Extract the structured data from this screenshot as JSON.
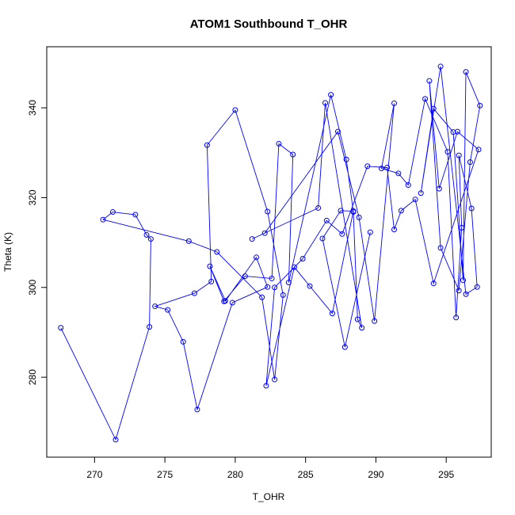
{
  "chart_data": {
    "type": "line",
    "title": "ATOM1 Southbound T_OHR",
    "xlabel": "T_OHR",
    "ylabel": "Theta (K)",
    "xlim": [
      266.6,
      298.2
    ],
    "ylim": [
      262.2,
      353.6
    ],
    "xticks": [
      270,
      275,
      280,
      285,
      290,
      295
    ],
    "yticks": [
      280,
      300,
      320,
      340
    ],
    "grid": false,
    "markers": "open-circle",
    "series": [
      {
        "color": "#0000ff",
        "x": [
          267.6,
          271.5,
          273.9,
          274.0,
          273.7,
          272.9,
          271.3,
          270.6,
          276.7,
          278.7,
          281.9,
          282.8,
          283.4,
          282.3,
          280.0,
          278.0,
          278.3,
          277.1,
          274.3,
          275.2,
          276.3,
          277.3,
          279.8,
          282.3,
          281.5,
          279.3,
          278.2,
          279.2,
          280.7,
          282.6,
          283.1,
          284.1,
          283.8,
          286.8,
          287.9,
          288.4,
          288.7,
          289.0,
          286.4,
          285.9,
          281.2,
          282.1,
          287.3,
          288.8,
          289.9,
          291.3,
          290.4,
          291.6,
          292.3,
          293.5,
          295.1,
          295.7,
          296.1,
          295.9,
          296.8,
          297.2,
          296.4,
          294.6,
          293.2,
          294.1,
          295.5,
          296.2,
          296.4,
          297.4,
          296.7,
          295.9,
          294.6,
          293.8,
          294.5,
          295.8,
          297.3,
          294.1,
          292.8,
          291.8,
          291.3,
          290.8,
          289.4,
          287.6,
          286.5,
          284.8,
          282.8,
          282.2,
          284.2,
          285.3,
          286.9,
          288.4,
          287.5,
          286.2,
          287.8,
          289.6
        ],
        "y": [
          291.0,
          266.1,
          291.2,
          310.8,
          311.7,
          316.2,
          316.8,
          315.1,
          310.3,
          307.9,
          297.8,
          279.5,
          298.3,
          316.9,
          339.5,
          331.7,
          301.3,
          298.7,
          295.8,
          295.0,
          287.9,
          272.8,
          296.6,
          300.1,
          306.7,
          297.0,
          304.7,
          296.9,
          302.5,
          302.0,
          332.0,
          329.6,
          301.1,
          342.9,
          328.5,
          316.8,
          292.9,
          291.0,
          341.1,
          317.7,
          310.8,
          312.1,
          334.7,
          315.6,
          292.5,
          341.0,
          326.5,
          325.4,
          322.8,
          342.0,
          330.2,
          293.3,
          313.3,
          329.4,
          317.6,
          300.1,
          298.5,
          349.2,
          321.0,
          339.8,
          334.6,
          301.6,
          348.0,
          340.5,
          327.9,
          299.3,
          308.8,
          346.0,
          322.0,
          334.7,
          330.7,
          300.9,
          319.6,
          317.1,
          312.9,
          326.7,
          327.0,
          311.9,
          314.9,
          306.4,
          300.0,
          278.1,
          304.5,
          300.3,
          294.2,
          317.0,
          317.1,
          310.9,
          286.7,
          312.3
        ]
      }
    ]
  }
}
